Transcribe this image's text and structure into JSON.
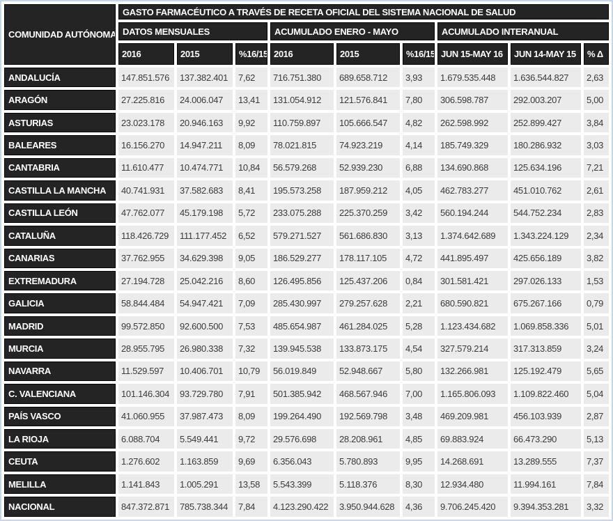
{
  "chart_data": {
    "type": "table",
    "title": "GASTO FARMACÉUTICO A TRAVÉS DE RECETA OFICIAL DEL SISTEMA NACIONAL DE SALUD",
    "row_header": "COMUNIDAD AUTÓNOMA",
    "column_groups": [
      {
        "label": "DATOS MENSUALES",
        "columns": [
          "2016",
          "2015",
          "%16/15"
        ]
      },
      {
        "label": "ACUMULADO ENERO - MAYO",
        "columns": [
          "2016",
          "2015",
          "%16/15"
        ]
      },
      {
        "label": "ACUMULADO INTERANUAL",
        "columns": [
          "JUN 15-MAY 16",
          "JUN 14-MAY 15",
          "% Δ"
        ]
      }
    ],
    "rows": [
      {
        "name": "ANDALUCÍA",
        "values": [
          "147.851.576",
          "137.382.401",
          "7,62",
          "716.751.380",
          "689.658.712",
          "3,93",
          "1.679.535.448",
          "1.636.544.827",
          "2,63"
        ]
      },
      {
        "name": "ARAGÓN",
        "values": [
          "27.225.816",
          "24.006.047",
          "13,41",
          "131.054.912",
          "121.576.841",
          "7,80",
          "306.598.787",
          "292.003.207",
          "5,00"
        ]
      },
      {
        "name": "ASTURIAS",
        "values": [
          "23.023.178",
          "20.946.163",
          "9,92",
          "110.759.897",
          "105.666.547",
          "4,82",
          "262.598.992",
          "252.899.427",
          "3,84"
        ]
      },
      {
        "name": "BALEARES",
        "values": [
          "16.156.270",
          "14.947.211",
          "8,09",
          "78.021.815",
          "74.923.219",
          "4,14",
          "185.749.329",
          "180.286.932",
          "3,03"
        ]
      },
      {
        "name": "CANTABRIA",
        "values": [
          "11.610.477",
          "10.474.771",
          "10,84",
          "56.579.268",
          "52.939.230",
          "6,88",
          "134.690.868",
          "125.634.196",
          "7,21"
        ]
      },
      {
        "name": "CASTILLA LA MANCHA",
        "values": [
          "40.741.931",
          "37.582.683",
          "8,41",
          "195.573.258",
          "187.959.212",
          "4,05",
          "462.783.277",
          "451.010.762",
          "2,61"
        ]
      },
      {
        "name": "CASTILLA LEÓN",
        "values": [
          "47.762.077",
          "45.179.198",
          "5,72",
          "233.075.288",
          "225.370.259",
          "3,42",
          "560.194.244",
          "544.752.234",
          "2,83"
        ]
      },
      {
        "name": "CATALUÑA",
        "values": [
          "118.426.729",
          "111.177.452",
          "6,52",
          "579.271.527",
          "561.686.830",
          "3,13",
          "1.374.642.689",
          "1.343.224.129",
          "2,34"
        ]
      },
      {
        "name": "CANARIAS",
        "values": [
          "37.762.955",
          "34.629.398",
          "9,05",
          "186.529.277",
          "178.117.105",
          "4,72",
          "441.895.497",
          "425.656.189",
          "3,82"
        ]
      },
      {
        "name": "EXTREMADURA",
        "values": [
          "27.194.728",
          "25.042.216",
          "8,60",
          "126.495.856",
          "125.437.206",
          "0,84",
          "301.581.421",
          "297.026.133",
          "1,53"
        ]
      },
      {
        "name": "GALICIA",
        "values": [
          "58.844.484",
          "54.947.421",
          "7,09",
          "285.430.997",
          "279.257.628",
          "2,21",
          "680.590.821",
          "675.267.166",
          "0,79"
        ]
      },
      {
        "name": "MADRID",
        "values": [
          "99.572.850",
          "92.600.500",
          "7,53",
          "485.654.987",
          "461.284.025",
          "5,28",
          "1.123.434.682",
          "1.069.858.336",
          "5,01"
        ]
      },
      {
        "name": "MURCIA",
        "values": [
          "28.955.795",
          "26.980.338",
          "7,32",
          "139.945.538",
          "133.873.175",
          "4,54",
          "327.579.214",
          "317.313.859",
          "3,24"
        ]
      },
      {
        "name": "NAVARRA",
        "values": [
          "11.529.597",
          "10.406.701",
          "10,79",
          "56.019.849",
          "52.948.667",
          "5,80",
          "132.266.981",
          "125.192.479",
          "5,65"
        ]
      },
      {
        "name": "C. VALENCIANA",
        "values": [
          "101.146.304",
          "93.729.780",
          "7,91",
          "501.385.942",
          "468.567.946",
          "7,00",
          "1.165.806.093",
          "1.109.822.460",
          "5,04"
        ]
      },
      {
        "name": "PAÍS VASCO",
        "values": [
          "41.060.955",
          "37.987.473",
          "8,09",
          "199.264.490",
          "192.569.798",
          "3,48",
          "469.209.981",
          "456.103.939",
          "2,87"
        ]
      },
      {
        "name": "LA RIOJA",
        "values": [
          "6.088.704",
          "5.549.441",
          "9,72",
          "29.576.698",
          "28.208.961",
          "4,85",
          "69.883.924",
          "66.473.290",
          "5,13"
        ]
      },
      {
        "name": "CEUTA",
        "values": [
          "1.276.602",
          "1.163.859",
          "9,69",
          "6.356.043",
          "5.780.893",
          "9,95",
          "14.268.691",
          "13.289.555",
          "7,37"
        ]
      },
      {
        "name": "MELILLA",
        "values": [
          "1.141.843",
          "1.005.291",
          "13,58",
          "5.543.399",
          "5.118.376",
          "8,30",
          "12.934.480",
          "11.994.161",
          "7,84"
        ]
      },
      {
        "name": "NACIONAL",
        "values": [
          "847.372.871",
          "785.738.344",
          "7,84",
          "4.123.290.422",
          "3.950.944.628",
          "4,36",
          "9.706.245.420",
          "9.394.353.281",
          "3,32"
        ]
      }
    ],
    "colors": {
      "header_bg": "#242424",
      "header_text": "#ffffff",
      "cell_bg": "#ebebeb",
      "cell_text": "#3b3b3b",
      "outer_border": "#c7d5e8",
      "gap": "#ffffff"
    }
  }
}
